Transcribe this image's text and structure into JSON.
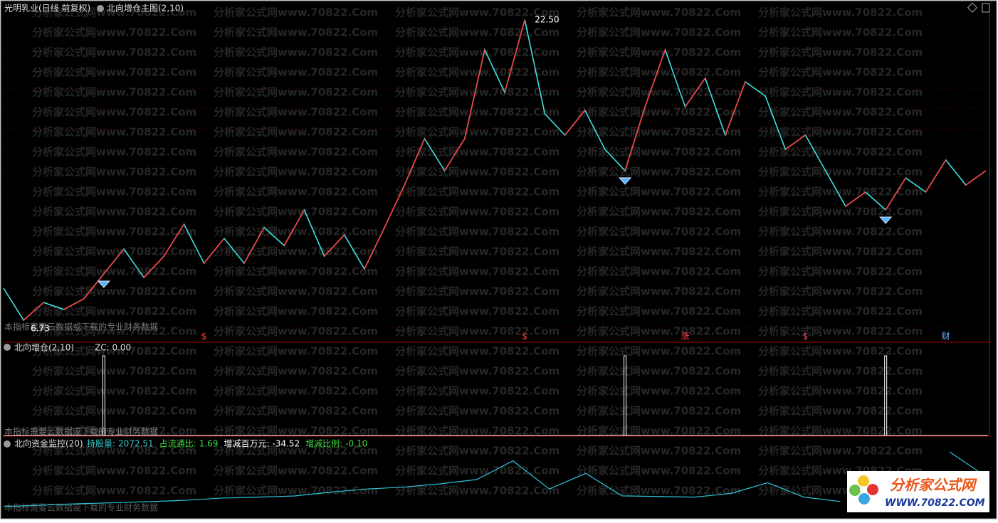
{
  "chart_data": [
    {
      "type": "line",
      "title": "光明乳业(日线 前复权)",
      "subtitle": "北向增仓主图(2,10)",
      "note": "本指标需要云数据或下载的专业财务数据",
      "watermark": "分析家公式网www.70822.Com",
      "values": [
        8.41,
        6.73,
        7.66,
        7.29,
        7.85,
        9.16,
        10.47,
        8.97,
        10.09,
        11.77,
        9.72,
        11.03,
        9.72,
        11.59,
        10.65,
        12.52,
        10.09,
        11.21,
        9.42,
        11.59,
        13.83,
        16.26,
        14.58,
        16.26,
        20.93,
        18.69,
        22.5,
        17.57,
        16.45,
        17.75,
        15.7,
        14.58,
        17.94,
        20.93,
        17.94,
        19.44,
        16.45,
        19.25,
        18.5,
        15.7,
        16.45,
        14.58,
        12.71,
        13.46,
        12.52,
        14.2,
        13.46,
        15.14,
        13.83,
        14.58
      ],
      "annotations": [
        {
          "value": 22.5,
          "label": "22.50"
        },
        {
          "value": 6.73,
          "label": "6.73"
        }
      ],
      "events": [
        null,
        null,
        null,
        null,
        null,
        null,
        null,
        null,
        null,
        null,
        "$",
        null,
        null,
        null,
        null,
        null,
        null,
        null,
        null,
        null,
        null,
        null,
        null,
        null,
        null,
        null,
        "$",
        null,
        null,
        null,
        null,
        null,
        null,
        null,
        "涨",
        null,
        null,
        null,
        null,
        null,
        "$",
        null,
        null,
        null,
        null,
        null,
        null,
        "财",
        null,
        null
      ],
      "up_color": "#ff3c3c",
      "down_color": "#3ce0e0",
      "ylim": [
        6,
        23
      ]
    },
    {
      "type": "spike",
      "title": "北向增仓(2,10)",
      "readout": "ZC: 0.00",
      "values": [
        0,
        0,
        0,
        0,
        0,
        1,
        0,
        0,
        0,
        0,
        0,
        0,
        0,
        0,
        0,
        0,
        0,
        0,
        0,
        0,
        0,
        0,
        0,
        0,
        0,
        0,
        0,
        0,
        0,
        0,
        0,
        1,
        0,
        0,
        0,
        0,
        0,
        0,
        0,
        0,
        0,
        0,
        0,
        0,
        1,
        0,
        0,
        0,
        0,
        0
      ],
      "color": "#ffffff",
      "ylim": [
        0,
        1
      ]
    },
    {
      "type": "line",
      "title": "北向资金监控(20)",
      "readouts": [
        {
          "label": "持股量:",
          "value": "2072.51",
          "color": "#3cc8c8"
        },
        {
          "label": "占流通比:",
          "value": "1.69",
          "color": "#3cdc3c"
        },
        {
          "label": "增减百万元:",
          "value": "-34.52",
          "color": "#ffffff"
        },
        {
          "label": "增减比例:",
          "value": "-0.10",
          "color": "#3cdc3c"
        }
      ],
      "values": [
        6.8,
        9,
        11.4,
        13,
        14.8,
        17,
        20.5,
        22,
        23.9,
        30,
        35,
        38,
        43.2,
        50,
        80,
        35,
        60,
        24,
        23,
        22,
        28,
        45,
        22,
        15,
        null,
        null,
        94.3,
        55
      ],
      "color": "#2ec4d8",
      "ylim": [
        0,
        100
      ]
    },
    {
      "type": "logo",
      "title": "分析家公式网",
      "subtitle": "WWW.70822.COM"
    }
  ]
}
